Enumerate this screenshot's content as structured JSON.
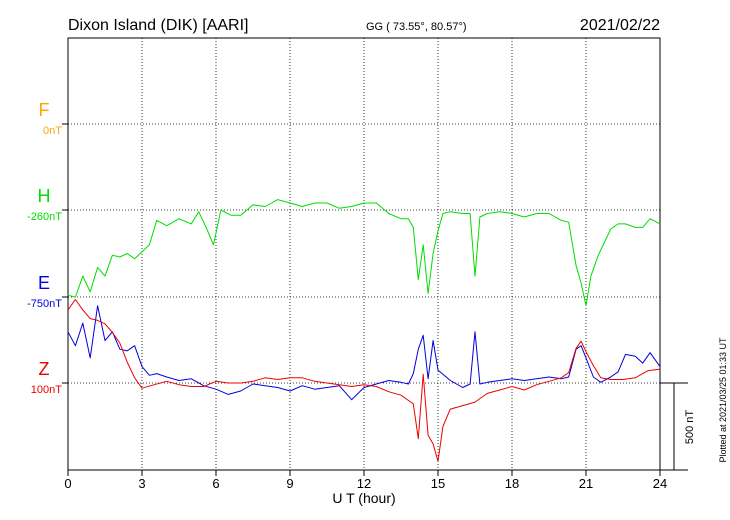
{
  "header": {
    "station": "Dixon Island (DIK)  [AARI]",
    "coords": "GG ( 73.55°,  80.57°)",
    "date": "2021/02/22"
  },
  "plotted_note": "Plotted at 2021/03/25 01:33 UT",
  "chart_data": {
    "type": "line",
    "xlabel": "U T (hour)",
    "xlim": [
      0,
      24
    ],
    "xticks": [
      "0",
      "3",
      "6",
      "9",
      "12",
      "15",
      "18",
      "21",
      "24"
    ],
    "scale_bar_label": "500 nT",
    "colors": {
      "F": "#ffa500",
      "H": "#00dd00",
      "E": "#0000dd",
      "Z": "#ee0000"
    },
    "series": [
      {
        "name": "F",
        "baseline_label": "0nT",
        "x": [],
        "y": []
      },
      {
        "name": "H",
        "baseline_label": "-260nT",
        "x": [
          0,
          0.3,
          0.6,
          0.9,
          1.2,
          1.5,
          1.8,
          2.1,
          2.4,
          2.7,
          3.0,
          3.3,
          3.6,
          4.0,
          4.5,
          5.0,
          5.3,
          5.6,
          5.9,
          6.2,
          6.6,
          7.0,
          7.5,
          8.0,
          8.5,
          9.0,
          9.5,
          10.0,
          10.5,
          11.0,
          11.5,
          12.0,
          12.5,
          13.0,
          13.5,
          13.8,
          14.0,
          14.2,
          14.4,
          14.6,
          14.8,
          15.0,
          15.2,
          15.5,
          16.0,
          16.3,
          16.5,
          16.7,
          17.0,
          17.5,
          18.0,
          18.5,
          19.0,
          19.5,
          20.0,
          20.3,
          20.6,
          20.8,
          21.0,
          21.2,
          21.5,
          21.8,
          22.0,
          22.3,
          22.6,
          23.0,
          23.3,
          23.6,
          24.0
        ],
        "y": [
          -490,
          -500,
          -380,
          -470,
          -330,
          -380,
          -260,
          -270,
          -250,
          -280,
          -240,
          -200,
          -60,
          -90,
          -50,
          -80,
          -10,
          -100,
          -200,
          0,
          -30,
          -30,
          30,
          20,
          60,
          40,
          20,
          40,
          40,
          10,
          20,
          40,
          40,
          -20,
          -50,
          -50,
          -100,
          -400,
          -200,
          -480,
          -250,
          -120,
          -20,
          -10,
          -20,
          -20,
          -380,
          -40,
          -20,
          -10,
          -20,
          -40,
          -20,
          -20,
          -60,
          -70,
          -320,
          -420,
          -550,
          -380,
          -260,
          -170,
          -110,
          -80,
          -80,
          -100,
          -100,
          -50,
          -80
        ]
      },
      {
        "name": "E",
        "baseline_label": "-750nT",
        "x": [
          0,
          0.3,
          0.6,
          0.9,
          1.2,
          1.5,
          1.8,
          2.1,
          2.4,
          2.7,
          3.0,
          3.3,
          3.6,
          4.0,
          4.5,
          5.0,
          5.5,
          6.0,
          6.5,
          7.0,
          7.5,
          8.0,
          8.5,
          9.0,
          9.5,
          10.0,
          10.5,
          11.0,
          11.5,
          12.0,
          12.5,
          13.0,
          13.5,
          13.8,
          14.0,
          14.2,
          14.4,
          14.6,
          14.8,
          15.0,
          15.5,
          16.0,
          16.3,
          16.5,
          16.7,
          17.0,
          17.5,
          18.0,
          18.5,
          19.0,
          19.5,
          20.0,
          20.3,
          20.6,
          20.8,
          21.0,
          21.3,
          21.6,
          22.0,
          22.3,
          22.6,
          23.0,
          23.3,
          23.6,
          24.0
        ],
        "y": [
          -200,
          -280,
          -150,
          -350,
          -50,
          -250,
          -200,
          -300,
          -310,
          -280,
          -400,
          -450,
          -440,
          -460,
          -480,
          -470,
          -510,
          -530,
          -560,
          -540,
          -500,
          -510,
          -520,
          -540,
          -510,
          -530,
          -520,
          -510,
          -590,
          -520,
          -500,
          -480,
          -490,
          -500,
          -440,
          -300,
          -220,
          -470,
          -250,
          -420,
          -480,
          -520,
          -500,
          -200,
          -500,
          -490,
          -480,
          -470,
          -480,
          -470,
          -460,
          -470,
          -460,
          -300,
          -280,
          -350,
          -460,
          -490,
          -460,
          -430,
          -330,
          -340,
          -380,
          -320,
          -400
        ]
      },
      {
        "name": "Z",
        "baseline_label": "100nT",
        "x": [
          0,
          0.3,
          0.6,
          0.9,
          1.2,
          1.5,
          1.8,
          2.1,
          2.4,
          2.7,
          3.0,
          3.5,
          4.0,
          4.5,
          5.0,
          5.5,
          6.0,
          6.5,
          7.0,
          7.5,
          8.0,
          8.5,
          9.0,
          9.5,
          10.0,
          10.5,
          11.0,
          11.5,
          12.0,
          12.5,
          13.0,
          13.5,
          14.0,
          14.2,
          14.4,
          14.6,
          14.8,
          15.0,
          15.2,
          15.5,
          16.0,
          16.5,
          17.0,
          17.5,
          18.0,
          18.5,
          19.0,
          19.5,
          20.0,
          20.3,
          20.6,
          20.8,
          21.0,
          21.3,
          21.6,
          22.0,
          22.5,
          23.0,
          23.5,
          24.0
        ],
        "y": [
          420,
          480,
          420,
          370,
          360,
          340,
          290,
          230,
          120,
          30,
          -30,
          -10,
          10,
          -10,
          -20,
          -20,
          10,
          0,
          0,
          10,
          30,
          20,
          30,
          30,
          10,
          0,
          -10,
          -20,
          -10,
          -20,
          -50,
          -70,
          -120,
          -320,
          50,
          -300,
          -350,
          -450,
          -250,
          -150,
          -130,
          -110,
          -60,
          -40,
          -20,
          -40,
          -10,
          10,
          30,
          60,
          200,
          240,
          180,
          100,
          30,
          20,
          20,
          30,
          70,
          80
        ]
      }
    ]
  }
}
